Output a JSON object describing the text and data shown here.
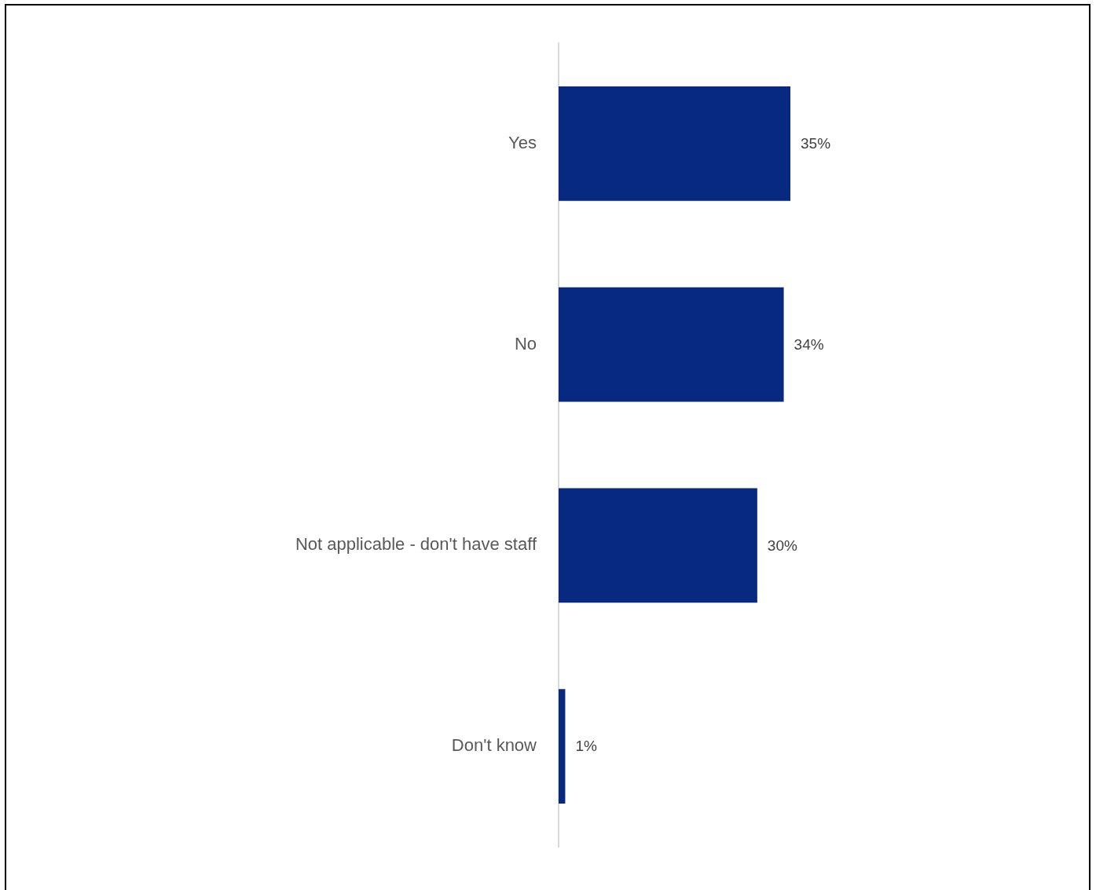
{
  "chart_data": {
    "type": "bar",
    "orientation": "horizontal",
    "categories": [
      "Yes",
      "No",
      "Not applicable - don't have staff",
      "Don't know"
    ],
    "values": [
      35,
      34,
      30,
      1
    ],
    "color": "#082980",
    "value_labels": [
      "35%",
      "34%",
      "30%",
      "1%"
    ]
  }
}
